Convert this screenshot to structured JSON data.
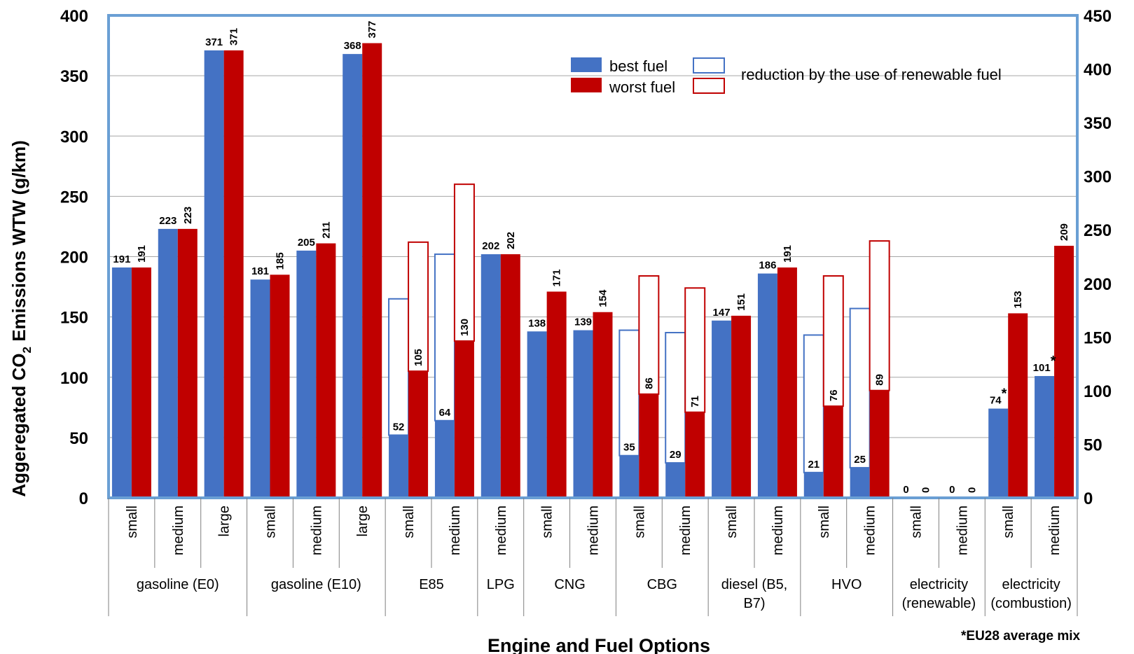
{
  "chart_data": {
    "type": "bar",
    "xlabel": "Engine and Fuel Options",
    "ylabel_main": "Aggeregated CO",
    "ylabel_sub": "2",
    "ylabel_rest": " Emissions WTW (g/km)",
    "ylim": [
      0,
      400
    ],
    "y_ticks": [
      "0",
      "50",
      "100",
      "150",
      "200",
      "250",
      "300",
      "350",
      "400"
    ],
    "y2lim": [
      0,
      450
    ],
    "y2_ticks": [
      "0",
      "50",
      "100",
      "150",
      "200",
      "250",
      "300",
      "350",
      "400",
      "450"
    ],
    "grid": true,
    "legend": {
      "position": "top-right",
      "best": "best fuel",
      "worst": "worst fuel",
      "reduction": "reduction by the use of renewable fuel"
    },
    "colors": {
      "best": "#4472C4",
      "worst": "#C00000",
      "axis": "#6A9FD4",
      "grid": "#A6A6A6"
    },
    "footnote": "*EU28 average mix",
    "groups": [
      {
        "lines": [
          "gasoline (E0)"
        ],
        "size": 3
      },
      {
        "lines": [
          "gasoline (E10)"
        ],
        "size": 3
      },
      {
        "lines": [
          "E85"
        ],
        "size": 2
      },
      {
        "lines": [
          "LPG"
        ],
        "size": 1
      },
      {
        "lines": [
          "CNG"
        ],
        "size": 2
      },
      {
        "lines": [
          "CBG"
        ],
        "size": 2
      },
      {
        "lines": [
          "diesel (B5,",
          "B7)"
        ],
        "size": 2
      },
      {
        "lines": [
          "HVO"
        ],
        "size": 2
      },
      {
        "lines": [
          "electricity",
          "(renewable)"
        ],
        "size": 2
      },
      {
        "lines": [
          "electricity",
          "(combustion)"
        ],
        "size": 2
      }
    ],
    "categories": [
      "small",
      "medium",
      "large",
      "small",
      "medium",
      "large",
      "small",
      "medium",
      "medium",
      "small",
      "medium",
      "small",
      "medium",
      "small",
      "medium",
      "small",
      "medium",
      "small",
      "medium",
      "small",
      "medium"
    ],
    "series": [
      {
        "name": "best fuel",
        "values": [
          191,
          223,
          371,
          181,
          205,
          368,
          52,
          64,
          202,
          138,
          139,
          35,
          29,
          147,
          186,
          21,
          25,
          0,
          0,
          74,
          101
        ]
      },
      {
        "name": "worst fuel",
        "values": [
          191,
          223,
          371,
          185,
          211,
          377,
          105,
          130,
          202,
          171,
          154,
          86,
          71,
          151,
          191,
          76,
          89,
          0,
          0,
          153,
          209
        ]
      }
    ],
    "best_labels": [
      "191",
      "223",
      "371",
      "181",
      "205",
      "368",
      "52",
      "64",
      "202",
      "138",
      "139",
      "35",
      "29",
      "147",
      "186",
      "21",
      "25",
      "0",
      "0",
      "74",
      "101"
    ],
    "worst_labels": [
      "191",
      "223",
      "371",
      "185",
      "211",
      "377",
      "105",
      "130",
      "202",
      "171",
      "154",
      "86",
      "71",
      "151",
      "191",
      "76",
      "89",
      "0",
      "0",
      "153",
      "209"
    ],
    "best_label_suffix": [
      "",
      "",
      "",
      "",
      "",
      "",
      "",
      "",
      "",
      "",
      "",
      "",
      "",
      "",
      "",
      "",
      "",
      "",
      "",
      "*",
      "*"
    ],
    "best_reduction_tops": [
      null,
      null,
      null,
      null,
      null,
      null,
      165,
      202,
      null,
      null,
      null,
      139,
      137,
      null,
      null,
      135,
      157,
      null,
      null,
      null,
      null
    ],
    "worst_reduction_tops": [
      null,
      null,
      null,
      null,
      null,
      null,
      212,
      260,
      null,
      null,
      null,
      184,
      174,
      null,
      null,
      184,
      213,
      null,
      null,
      null,
      null
    ]
  }
}
